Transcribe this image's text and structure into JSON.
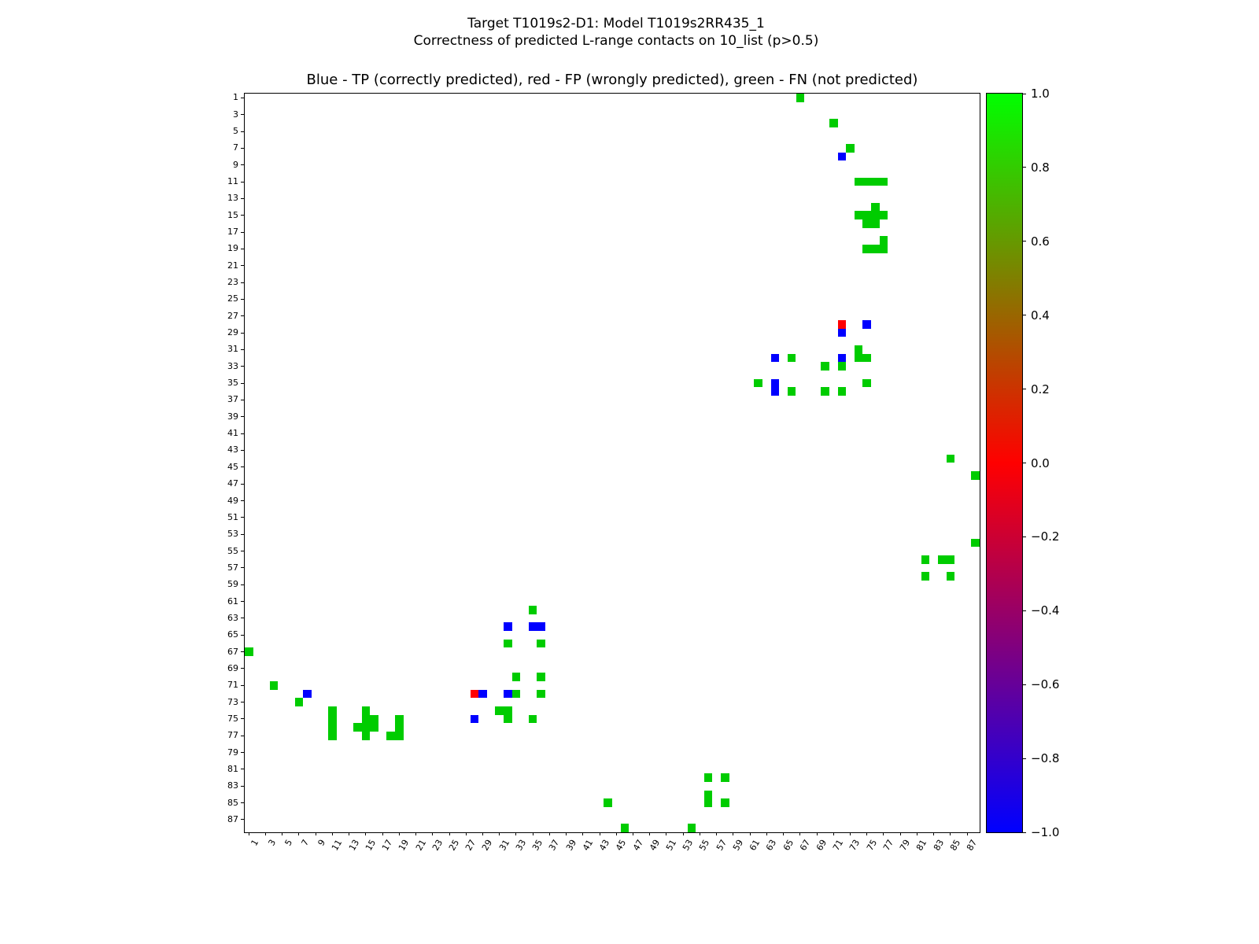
{
  "figure": {
    "title_line1": "Target T1019s2-D1: Model T1019s2RR435_1",
    "title_line2": "Correctness of predicted L-range contacts on 10_list (p>0.5)",
    "axes_title": "Blue - TP (correctly predicted), red - FP (wrongly predicted), green - FN (not predicted)"
  },
  "chart_data": {
    "type": "heatmap",
    "subtype": "contact-map",
    "title": "Blue - TP (correctly predicted), red - FP (wrongly predicted), green - FN (not predicted)",
    "xlabel": "",
    "ylabel": "",
    "axis_range": [
      1,
      88
    ],
    "grid": false,
    "symmetric": true,
    "x_tick_labels": [
      1,
      3,
      5,
      7,
      9,
      11,
      13,
      15,
      17,
      19,
      21,
      23,
      25,
      27,
      29,
      31,
      33,
      35,
      37,
      39,
      41,
      43,
      45,
      47,
      49,
      51,
      53,
      55,
      57,
      59,
      61,
      63,
      65,
      67,
      69,
      71,
      73,
      75,
      77,
      79,
      81,
      83,
      85,
      87
    ],
    "y_tick_labels": [
      1,
      3,
      5,
      7,
      9,
      11,
      13,
      15,
      17,
      19,
      21,
      23,
      25,
      27,
      29,
      31,
      33,
      35,
      37,
      39,
      41,
      43,
      45,
      47,
      49,
      51,
      53,
      55,
      57,
      59,
      61,
      63,
      65,
      67,
      69,
      71,
      73,
      75,
      77,
      79,
      81,
      83,
      85,
      87
    ],
    "classes": {
      "TP": {
        "label": "correctly predicted",
        "color": "#0000ff"
      },
      "FP": {
        "label": "wrongly predicted",
        "color": "#ff0000"
      },
      "FN": {
        "label": "not predicted",
        "color": "#00cc00"
      }
    },
    "contacts": [
      [
        1,
        67,
        "FN"
      ],
      [
        4,
        71,
        "FN"
      ],
      [
        7,
        73,
        "FN"
      ],
      [
        8,
        72,
        "TP"
      ],
      [
        11,
        74,
        "FN"
      ],
      [
        11,
        75,
        "FN"
      ],
      [
        11,
        76,
        "FN"
      ],
      [
        11,
        77,
        "FN"
      ],
      [
        14,
        76,
        "FN"
      ],
      [
        15,
        74,
        "FN"
      ],
      [
        15,
        75,
        "FN"
      ],
      [
        15,
        76,
        "FN"
      ],
      [
        15,
        77,
        "FN"
      ],
      [
        16,
        75,
        "FN"
      ],
      [
        16,
        76,
        "FN"
      ],
      [
        18,
        77,
        "FN"
      ],
      [
        19,
        75,
        "FN"
      ],
      [
        19,
        76,
        "FN"
      ],
      [
        19,
        77,
        "FN"
      ],
      [
        28,
        72,
        "FP"
      ],
      [
        28,
        75,
        "TP"
      ],
      [
        29,
        72,
        "TP"
      ],
      [
        31,
        74,
        "FN"
      ],
      [
        32,
        64,
        "TP"
      ],
      [
        32,
        66,
        "FN"
      ],
      [
        32,
        72,
        "TP"
      ],
      [
        32,
        74,
        "FN"
      ],
      [
        32,
        75,
        "FN"
      ],
      [
        33,
        70,
        "FN"
      ],
      [
        33,
        72,
        "FN"
      ],
      [
        35,
        62,
        "FN"
      ],
      [
        35,
        64,
        "TP"
      ],
      [
        35,
        75,
        "FN"
      ],
      [
        36,
        64,
        "TP"
      ],
      [
        36,
        66,
        "FN"
      ],
      [
        36,
        70,
        "FN"
      ],
      [
        36,
        72,
        "FN"
      ],
      [
        44,
        85,
        "FN"
      ],
      [
        46,
        88,
        "FN"
      ],
      [
        54,
        88,
        "FN"
      ],
      [
        56,
        82,
        "FN"
      ],
      [
        56,
        84,
        "FN"
      ],
      [
        56,
        85,
        "FN"
      ],
      [
        58,
        82,
        "FN"
      ],
      [
        58,
        85,
        "FN"
      ]
    ],
    "colorbar": {
      "min": -1.0,
      "max": 1.0,
      "tick_labels": [
        "1.0",
        "0.8",
        "0.6",
        "0.4",
        "0.2",
        "0.0",
        "−0.2",
        "−0.4",
        "−0.6",
        "−0.8",
        "−1.0"
      ],
      "gradient": [
        "#00ff00",
        "#ff0000",
        "#0000ff"
      ]
    }
  }
}
